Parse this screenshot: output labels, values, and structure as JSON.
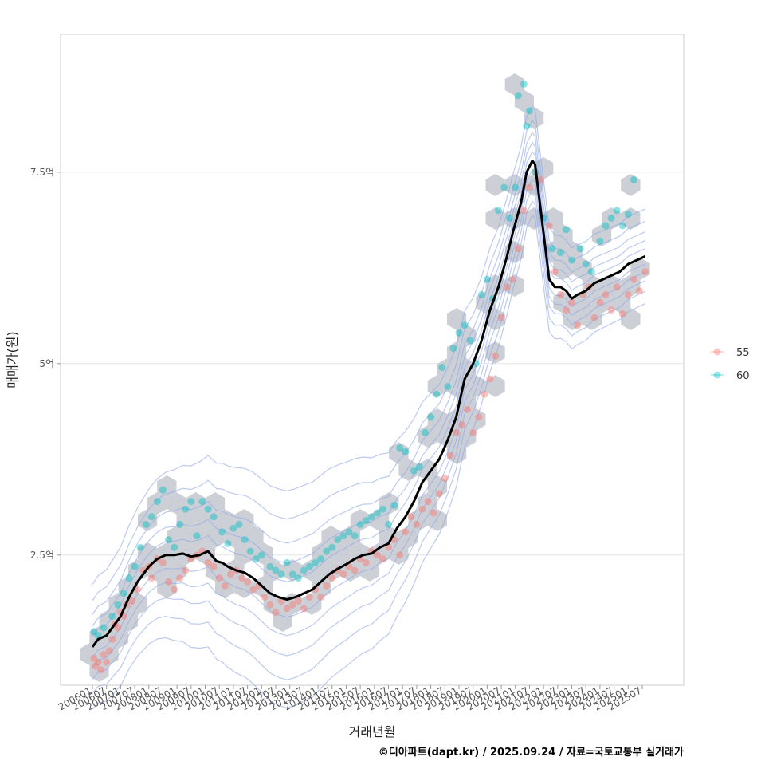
{
  "chart_data": {
    "type": "scatter",
    "title": "",
    "xlabel": "거래년월",
    "ylabel": "매매가(원)",
    "caption": "©디아파트(dapt.kr) / 2025.09.24 / 자료=국토교통부 실거래가",
    "y_ticks": [
      {
        "value": 2.5,
        "label": "2.5억"
      },
      {
        "value": 5.0,
        "label": "5억"
      },
      {
        "value": 7.5,
        "label": "7.5억"
      }
    ],
    "ylim": [
      0.8,
      9.3
    ],
    "x_range": [
      2005.5,
      2026.4
    ],
    "x_ticks": [
      "200601",
      "200607",
      "200701",
      "200707",
      "200801",
      "200807",
      "200901",
      "200907",
      "201001",
      "201007",
      "201101",
      "201107",
      "201201",
      "201207",
      "201301",
      "201307",
      "201401",
      "201407",
      "201501",
      "201507",
      "201601",
      "201607",
      "201701",
      "201707",
      "201801",
      "201807",
      "201901",
      "201907",
      "202001",
      "202007",
      "202101",
      "202107",
      "202201",
      "202207",
      "202301",
      "202307",
      "202401",
      "202407",
      "202501",
      "202507"
    ],
    "legend": {
      "position": "right",
      "entries": [
        {
          "name": "55",
          "color": "#F8766D"
        },
        {
          "name": "60",
          "color": "#00BFC4"
        }
      ]
    },
    "trend_line": {
      "name": "moving average",
      "color": "#000000",
      "x": [
        2006.0,
        2006.2,
        2006.5,
        2006.8,
        2007.0,
        2007.3,
        2007.6,
        2007.8,
        2008.0,
        2008.3,
        2008.6,
        2008.9,
        2009.2,
        2009.5,
        2009.8,
        2010.1,
        2010.4,
        2010.6,
        2010.8,
        2011.1,
        2011.4,
        2011.7,
        2012.0,
        2012.3,
        2012.6,
        2012.9,
        2013.2,
        2013.5,
        2013.8,
        2014.1,
        2014.4,
        2014.7,
        2015.0,
        2015.3,
        2015.6,
        2015.9,
        2016.2,
        2016.5,
        2016.8,
        2017.1,
        2017.4,
        2017.7,
        2018.0,
        2018.3,
        2018.6,
        2018.9,
        2019.2,
        2019.5,
        2019.8,
        2020.1,
        2020.4,
        2020.7,
        2020.9,
        2021.2,
        2021.4,
        2021.6,
        2021.7,
        2021.9,
        2022.1,
        2022.2,
        2022.4,
        2022.6,
        2022.8,
        2023.0,
        2023.2,
        2023.5,
        2023.8,
        2024.1,
        2024.4,
        2024.7,
        2025.0,
        2025.3,
        2025.6
      ],
      "y": [
        1.3,
        1.4,
        1.45,
        1.6,
        1.7,
        1.95,
        2.15,
        2.25,
        2.35,
        2.45,
        2.5,
        2.5,
        2.52,
        2.48,
        2.5,
        2.55,
        2.42,
        2.4,
        2.35,
        2.3,
        2.27,
        2.2,
        2.1,
        2.0,
        1.95,
        1.92,
        1.95,
        2.0,
        2.05,
        2.15,
        2.25,
        2.32,
        2.38,
        2.45,
        2.5,
        2.52,
        2.6,
        2.65,
        2.85,
        3.0,
        3.2,
        3.45,
        3.6,
        3.75,
        4.0,
        4.3,
        4.8,
        5.0,
        5.3,
        5.7,
        6.0,
        6.4,
        6.7,
        7.1,
        7.5,
        7.65,
        7.6,
        7.0,
        6.4,
        6.1,
        6.0,
        6.0,
        5.95,
        5.85,
        5.9,
        5.95,
        6.05,
        6.1,
        6.15,
        6.2,
        6.3,
        6.35,
        6.4
      ]
    },
    "series": [
      {
        "name": "55",
        "color": "#F8766D",
        "points": [
          [
            2006.05,
            1.15
          ],
          [
            2006.1,
            1.05
          ],
          [
            2006.2,
            1.1
          ],
          [
            2006.3,
            1.0
          ],
          [
            2006.4,
            1.2
          ],
          [
            2006.5,
            1.1
          ],
          [
            2006.6,
            1.25
          ],
          [
            2006.7,
            1.4
          ],
          [
            2006.8,
            1.6
          ],
          [
            2006.9,
            1.55
          ],
          [
            2007.0,
            1.75
          ],
          [
            2007.1,
            1.7
          ],
          [
            2007.2,
            1.85
          ],
          [
            2007.4,
            1.9
          ],
          [
            2007.6,
            2.05
          ],
          [
            2007.8,
            2.3
          ],
          [
            2008.0,
            2.35
          ],
          [
            2008.1,
            2.2
          ],
          [
            2008.3,
            2.45
          ],
          [
            2008.5,
            2.4
          ],
          [
            2008.7,
            2.15
          ],
          [
            2008.9,
            2.05
          ],
          [
            2009.1,
            2.2
          ],
          [
            2009.3,
            2.3
          ],
          [
            2009.5,
            2.45
          ],
          [
            2009.7,
            2.5
          ],
          [
            2009.9,
            2.55
          ],
          [
            2010.1,
            2.4
          ],
          [
            2010.3,
            2.35
          ],
          [
            2010.5,
            2.2
          ],
          [
            2010.7,
            2.1
          ],
          [
            2010.9,
            2.25
          ],
          [
            2011.1,
            2.3
          ],
          [
            2011.3,
            2.2
          ],
          [
            2011.5,
            2.15
          ],
          [
            2011.7,
            2.05
          ],
          [
            2011.9,
            2.1
          ],
          [
            2012.1,
            1.95
          ],
          [
            2012.3,
            1.85
          ],
          [
            2012.5,
            1.75
          ],
          [
            2012.7,
            1.9
          ],
          [
            2012.9,
            1.8
          ],
          [
            2013.1,
            1.85
          ],
          [
            2013.3,
            1.9
          ],
          [
            2013.5,
            1.8
          ],
          [
            2013.7,
            1.95
          ],
          [
            2013.9,
            2.05
          ],
          [
            2014.1,
            1.95
          ],
          [
            2014.3,
            2.1
          ],
          [
            2014.5,
            2.2
          ],
          [
            2014.7,
            2.3
          ],
          [
            2014.9,
            2.25
          ],
          [
            2015.1,
            2.35
          ],
          [
            2015.3,
            2.3
          ],
          [
            2015.5,
            2.45
          ],
          [
            2015.7,
            2.4
          ],
          [
            2015.9,
            2.55
          ],
          [
            2016.1,
            2.5
          ],
          [
            2016.3,
            2.45
          ],
          [
            2016.5,
            2.6
          ],
          [
            2016.7,
            2.7
          ],
          [
            2016.9,
            2.5
          ],
          [
            2017.1,
            2.8
          ],
          [
            2017.3,
            3.0
          ],
          [
            2017.5,
            2.9
          ],
          [
            2017.7,
            3.1
          ],
          [
            2017.9,
            3.2
          ],
          [
            2018.1,
            3.05
          ],
          [
            2018.3,
            3.3
          ],
          [
            2018.5,
            3.5
          ],
          [
            2018.7,
            3.8
          ],
          [
            2018.9,
            4.1
          ],
          [
            2019.1,
            4.2
          ],
          [
            2019.3,
            4.4
          ],
          [
            2019.5,
            4.1
          ],
          [
            2019.7,
            4.3
          ],
          [
            2019.9,
            4.6
          ],
          [
            2020.1,
            4.8
          ],
          [
            2020.3,
            5.1
          ],
          [
            2020.5,
            5.6
          ],
          [
            2020.7,
            6.0
          ],
          [
            2020.9,
            6.1
          ],
          [
            2021.1,
            6.5
          ],
          [
            2021.3,
            7.0
          ],
          [
            2021.5,
            7.3
          ],
          [
            2021.7,
            7.5
          ],
          [
            2021.9,
            7.4
          ],
          [
            2022.2,
            6.8
          ],
          [
            2022.4,
            6.2
          ],
          [
            2022.6,
            5.9
          ],
          [
            2022.8,
            5.7
          ],
          [
            2023.0,
            5.8
          ],
          [
            2023.2,
            5.5
          ],
          [
            2023.4,
            5.9
          ],
          [
            2023.6,
            6.0
          ],
          [
            2023.8,
            5.6
          ],
          [
            2024.0,
            5.8
          ],
          [
            2024.2,
            5.9
          ],
          [
            2024.4,
            5.7
          ],
          [
            2024.6,
            6.0
          ],
          [
            2024.8,
            5.65
          ],
          [
            2025.0,
            5.9
          ],
          [
            2025.2,
            6.1
          ],
          [
            2025.4,
            5.95
          ],
          [
            2025.6,
            6.2
          ]
        ]
      },
      {
        "name": "60",
        "color": "#00BFC4",
        "points": [
          [
            2006.05,
            1.5
          ],
          [
            2006.2,
            1.45
          ],
          [
            2006.4,
            1.55
          ],
          [
            2006.7,
            1.7
          ],
          [
            2006.9,
            1.85
          ],
          [
            2007.1,
            2.0
          ],
          [
            2007.3,
            2.2
          ],
          [
            2007.5,
            2.35
          ],
          [
            2007.7,
            2.6
          ],
          [
            2007.9,
            2.9
          ],
          [
            2008.1,
            3.0
          ],
          [
            2008.3,
            3.2
          ],
          [
            2008.5,
            3.35
          ],
          [
            2008.7,
            2.7
          ],
          [
            2008.9,
            2.6
          ],
          [
            2009.1,
            2.9
          ],
          [
            2009.3,
            3.1
          ],
          [
            2009.5,
            3.2
          ],
          [
            2009.7,
            2.75
          ],
          [
            2009.9,
            3.2
          ],
          [
            2010.1,
            3.1
          ],
          [
            2010.3,
            3.0
          ],
          [
            2010.6,
            2.8
          ],
          [
            2010.8,
            2.65
          ],
          [
            2011.0,
            2.85
          ],
          [
            2011.2,
            2.9
          ],
          [
            2011.4,
            2.7
          ],
          [
            2011.6,
            2.55
          ],
          [
            2011.8,
            2.45
          ],
          [
            2012.0,
            2.5
          ],
          [
            2012.3,
            2.35
          ],
          [
            2012.5,
            2.3
          ],
          [
            2012.7,
            2.25
          ],
          [
            2012.9,
            2.4
          ],
          [
            2013.1,
            2.25
          ],
          [
            2013.3,
            2.2
          ],
          [
            2013.5,
            2.3
          ],
          [
            2013.7,
            2.35
          ],
          [
            2013.9,
            2.4
          ],
          [
            2014.1,
            2.45
          ],
          [
            2014.3,
            2.55
          ],
          [
            2014.5,
            2.6
          ],
          [
            2014.7,
            2.7
          ],
          [
            2014.9,
            2.75
          ],
          [
            2015.1,
            2.8
          ],
          [
            2015.3,
            2.75
          ],
          [
            2015.5,
            2.9
          ],
          [
            2015.7,
            2.95
          ],
          [
            2015.9,
            3.0
          ],
          [
            2016.1,
            3.05
          ],
          [
            2016.3,
            3.1
          ],
          [
            2016.5,
            2.9
          ],
          [
            2016.7,
            3.15
          ],
          [
            2016.9,
            3.9
          ],
          [
            2017.1,
            3.85
          ],
          [
            2017.4,
            3.6
          ],
          [
            2017.6,
            3.65
          ],
          [
            2017.8,
            4.1
          ],
          [
            2018.0,
            4.3
          ],
          [
            2018.2,
            4.6
          ],
          [
            2018.4,
            4.95
          ],
          [
            2018.6,
            4.7
          ],
          [
            2018.8,
            5.2
          ],
          [
            2019.0,
            5.4
          ],
          [
            2019.2,
            5.5
          ],
          [
            2019.4,
            5.3
          ],
          [
            2019.6,
            5.0
          ],
          [
            2019.8,
            5.9
          ],
          [
            2020.0,
            6.1
          ],
          [
            2020.2,
            5.85
          ],
          [
            2020.4,
            7.0
          ],
          [
            2020.6,
            7.3
          ],
          [
            2020.8,
            6.9
          ],
          [
            2021.0,
            7.3
          ],
          [
            2021.1,
            8.5
          ],
          [
            2021.3,
            8.65
          ],
          [
            2021.5,
            8.3
          ],
          [
            2021.4,
            8.1
          ],
          [
            2021.7,
            7.5
          ],
          [
            2022.0,
            6.9
          ],
          [
            2022.3,
            6.5
          ],
          [
            2022.6,
            6.45
          ],
          [
            2022.8,
            6.75
          ],
          [
            2023.0,
            6.35
          ],
          [
            2023.3,
            6.5
          ],
          [
            2023.5,
            6.3
          ],
          [
            2023.7,
            6.2
          ],
          [
            2024.0,
            6.6
          ],
          [
            2024.2,
            6.8
          ],
          [
            2024.4,
            6.9
          ],
          [
            2024.6,
            7.0
          ],
          [
            2024.8,
            6.8
          ],
          [
            2025.0,
            6.95
          ],
          [
            2025.2,
            7.4
          ]
        ]
      }
    ]
  }
}
